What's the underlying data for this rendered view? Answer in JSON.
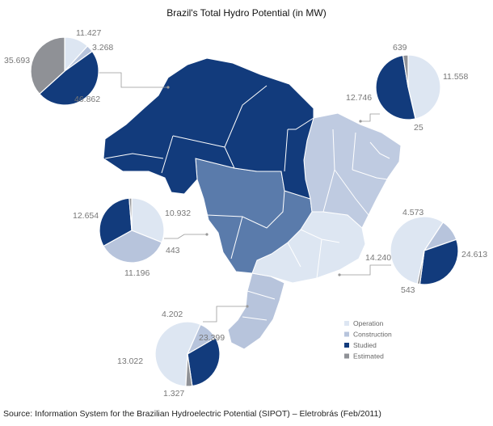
{
  "title": "Brazil's Total Hydro Potential (in MW)",
  "source": "Source: Information System for the Brazilian Hydroelectric Potential (SIPOT) – Eletrobrás (Feb/2011)",
  "colors": {
    "Operation": "#dde6f2",
    "Construction": "#b7c4dc",
    "Studied": "#123b7c",
    "Estimated": "#8f9196",
    "region_north": "#123b7c",
    "region_center_west": "#5a7bab",
    "region_northeast": "#bfcbe1",
    "region_southeast": "#dde6f2",
    "region_south": "#b7c4dc",
    "leader": "#999999"
  },
  "chart_data": {
    "type": "pie",
    "title": "Brazil's Total Hydro Potential (in MW)",
    "legend": {
      "placement": "bottom-right",
      "entries": [
        "Operation",
        "Construction",
        "Studied",
        "Estimated"
      ]
    },
    "categories": [
      "Operation",
      "Construction",
      "Studied",
      "Estimated"
    ],
    "pies": [
      {
        "region": "north",
        "values": [
          11427,
          3268,
          46862,
          35693
        ],
        "labels": [
          "11.427",
          "3.268",
          "46.862",
          "35.693"
        ]
      },
      {
        "region": "northeast",
        "values": [
          11558,
          25,
          12746,
          639
        ],
        "labels": [
          "11.558",
          "25",
          "12.746",
          "639"
        ]
      },
      {
        "region": "center-west",
        "values": [
          10932,
          12654,
          11196,
          443
        ],
        "labels": [
          "10.932",
          "12.654",
          "11.196",
          "443"
        ]
      },
      {
        "region": "southeast",
        "values": [
          24613,
          4573,
          14240,
          543
        ],
        "labels": [
          "24.613",
          "4.573",
          "14.240",
          "543"
        ]
      },
      {
        "region": "south",
        "values": [
          23399,
          4202,
          13022,
          1327
        ],
        "labels": [
          "23.399",
          "4.202",
          "13.022",
          "1.327"
        ]
      }
    ]
  }
}
